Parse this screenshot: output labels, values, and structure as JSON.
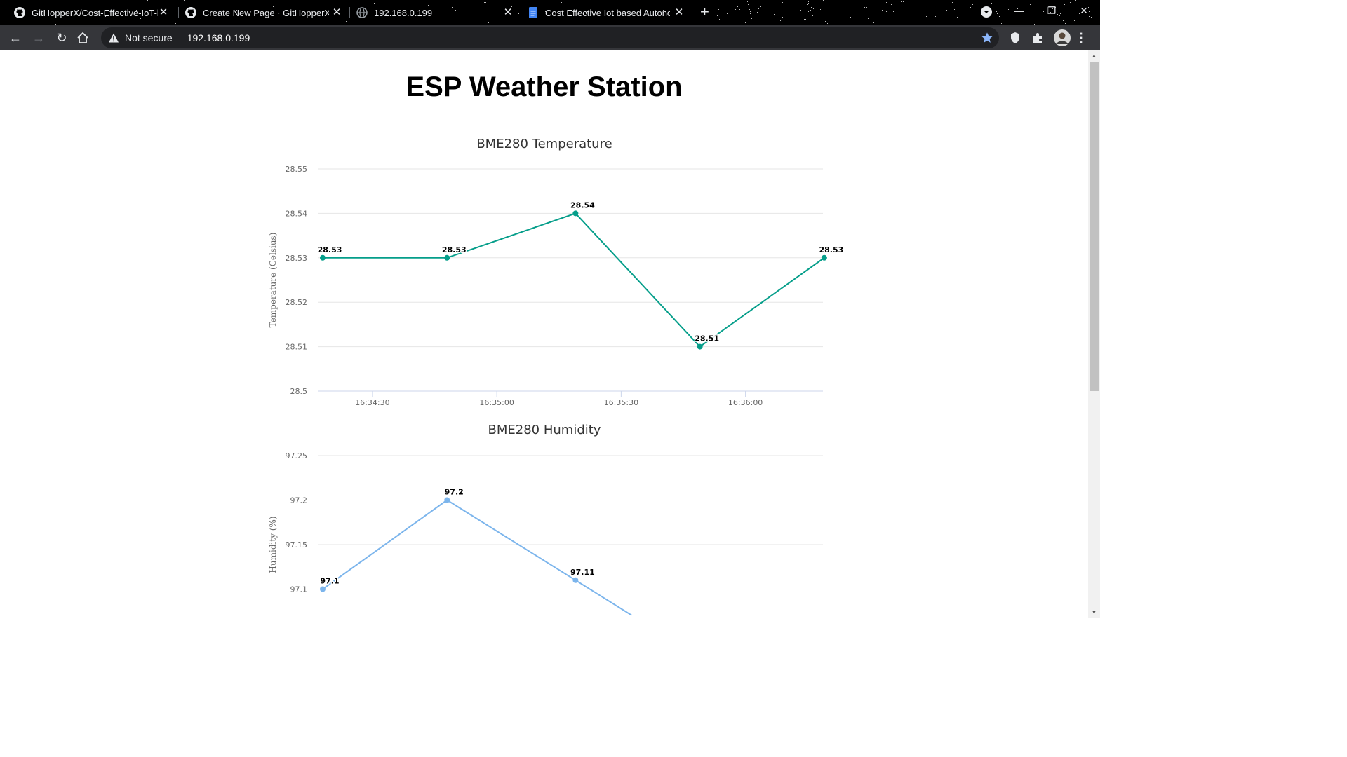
{
  "browser": {
    "tabs": [
      {
        "title": "GitHopperX/Cost-Effective-IoT-b",
        "icon": "github-icon"
      },
      {
        "title": "Create New Page · GitHopperX/A",
        "icon": "github-icon"
      },
      {
        "title": "192.168.0.199",
        "icon": "globe-icon"
      },
      {
        "title": "Cost Effective Iot based Autonom",
        "icon": "docs-icon"
      }
    ],
    "security_label": "Not secure",
    "url": "192.168.0.199"
  },
  "page": {
    "title": "ESP Weather Station"
  },
  "chart_data": [
    {
      "type": "line",
      "title": "BME280 Temperature",
      "xlabel": "",
      "ylabel": "Temperature (Celsius)",
      "ylim": [
        28.5,
        28.55
      ],
      "yticks": [
        "28.55",
        "28.54",
        "28.53",
        "28.52",
        "28.51",
        "28.5"
      ],
      "xticks": [
        "16:34:30",
        "16:35:00",
        "16:35:30",
        "16:36:00"
      ],
      "x": [
        "16:34:18",
        "16:34:48",
        "16:35:19",
        "16:35:49",
        "16:36:19"
      ],
      "series": [
        {
          "values": [
            28.53,
            28.53,
            28.54,
            28.51,
            28.53
          ],
          "color": "#059e8a"
        }
      ],
      "data_labels": [
        "28.53",
        "28.53",
        "28.54",
        "28.51",
        "28.53"
      ],
      "grid": true
    },
    {
      "type": "line",
      "title": "BME280 Humidity",
      "xlabel": "",
      "ylabel": "Humidity (%)",
      "ylim": [
        97.05,
        97.25
      ],
      "yticks": [
        "97.25",
        "97.2",
        "97.15",
        "97.1"
      ],
      "x": [
        "16:34:18",
        "16:34:48",
        "16:35:19"
      ],
      "series": [
        {
          "values": [
            97.1,
            97.2,
            97.11
          ],
          "color": "#7cb5ec"
        }
      ],
      "data_labels": [
        "97.1",
        "97.2",
        "97.11"
      ],
      "grid": true
    }
  ]
}
